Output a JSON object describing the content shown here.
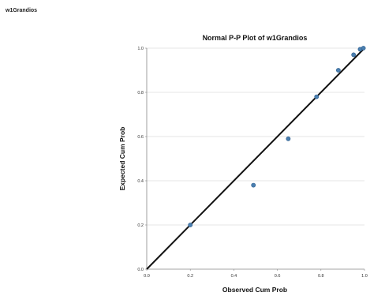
{
  "output_label": "w1Grandios",
  "chart_data": {
    "type": "scatter",
    "title": "Normal P-P Plot of w1Grandios",
    "xlabel": "Observed Cum Prob",
    "ylabel": "Expected Cum Prob",
    "xlim": [
      0.0,
      1.0
    ],
    "ylim": [
      0.0,
      1.0
    ],
    "xticks": [
      "0.0",
      "0.2",
      "0.4",
      "0.6",
      "0.8",
      "1.0"
    ],
    "yticks": [
      "0.0",
      "0.2",
      "0.4",
      "0.6",
      "0.8",
      "1.0"
    ],
    "grid": true,
    "reference_line": [
      [
        0.0,
        0.0
      ],
      [
        1.0,
        1.0
      ]
    ],
    "points": [
      {
        "x": 0.2,
        "y": 0.2
      },
      {
        "x": 0.49,
        "y": 0.38
      },
      {
        "x": 0.65,
        "y": 0.59
      },
      {
        "x": 0.78,
        "y": 0.78
      },
      {
        "x": 0.88,
        "y": 0.9
      },
      {
        "x": 0.95,
        "y": 0.97
      },
      {
        "x": 0.98,
        "y": 0.995
      },
      {
        "x": 0.995,
        "y": 1.0
      }
    ],
    "colors": {
      "point": "#4a7fb0",
      "point_edge": "#2f5f8f",
      "line": "#111111",
      "grid": "#dcdcdc",
      "axis": "#888888"
    }
  }
}
